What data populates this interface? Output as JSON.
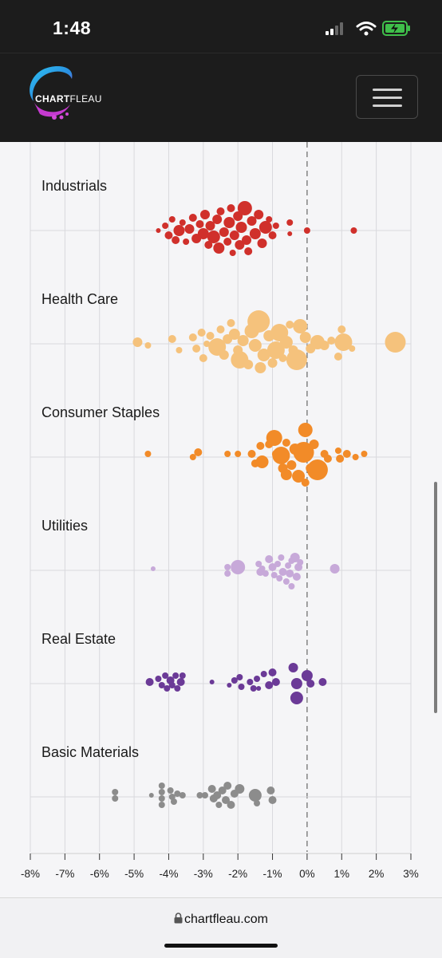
{
  "status_bar": {
    "time": "1:48"
  },
  "nav": {
    "logo_text_a": "CHART",
    "logo_text_b": "FLEAU",
    "menu_icon": "hamburger-menu-icon"
  },
  "url_bar": {
    "url": "chartfleau.com",
    "lock_icon": "lock-icon"
  },
  "chart_data": {
    "type": "scatter",
    "subtype": "beeswarm",
    "title": "",
    "xlabel": "",
    "ylabel": "",
    "xlim": [
      -8,
      3
    ],
    "x_ticks": [
      "-8%",
      "-7%",
      "-6%",
      "-5%",
      "-4%",
      "-3%",
      "-2%",
      "-1%",
      "0%",
      "1%",
      "2%",
      "3%"
    ],
    "x_tick_values": [
      -8,
      -7,
      -6,
      -5,
      -4,
      -3,
      -2,
      -1,
      0,
      1,
      2,
      3
    ],
    "reference_line": {
      "x": 0,
      "style": "dashed"
    },
    "grid": "vertical",
    "series": [
      {
        "name": "Industrials",
        "color": "#d0302b",
        "points": [
          {
            "x": -4.3,
            "dy": 0,
            "r": 3
          },
          {
            "x": -4.1,
            "dy": -6,
            "r": 4
          },
          {
            "x": -4.0,
            "dy": 6,
            "r": 5
          },
          {
            "x": -3.9,
            "dy": -14,
            "r": 4
          },
          {
            "x": -3.8,
            "dy": 12,
            "r": 5
          },
          {
            "x": -3.7,
            "dy": 0,
            "r": 7
          },
          {
            "x": -3.6,
            "dy": -10,
            "r": 4
          },
          {
            "x": -3.5,
            "dy": 14,
            "r": 4
          },
          {
            "x": -3.4,
            "dy": -2,
            "r": 6
          },
          {
            "x": -3.3,
            "dy": -16,
            "r": 5
          },
          {
            "x": -3.2,
            "dy": 10,
            "r": 6
          },
          {
            "x": -3.1,
            "dy": -8,
            "r": 5
          },
          {
            "x": -3.0,
            "dy": 4,
            "r": 7
          },
          {
            "x": -2.95,
            "dy": -20,
            "r": 6
          },
          {
            "x": -2.85,
            "dy": 18,
            "r": 5
          },
          {
            "x": -2.8,
            "dy": -6,
            "r": 6
          },
          {
            "x": -2.7,
            "dy": 8,
            "r": 8
          },
          {
            "x": -2.6,
            "dy": -14,
            "r": 6
          },
          {
            "x": -2.55,
            "dy": 22,
            "r": 7
          },
          {
            "x": -2.5,
            "dy": -24,
            "r": 5
          },
          {
            "x": -2.4,
            "dy": 2,
            "r": 6
          },
          {
            "x": -2.3,
            "dy": 14,
            "r": 5
          },
          {
            "x": -2.25,
            "dy": -10,
            "r": 7
          },
          {
            "x": -2.2,
            "dy": -28,
            "r": 5
          },
          {
            "x": -2.15,
            "dy": 28,
            "r": 4
          },
          {
            "x": -2.1,
            "dy": 6,
            "r": 6
          },
          {
            "x": -2.0,
            "dy": -18,
            "r": 6
          },
          {
            "x": -1.95,
            "dy": 18,
            "r": 6
          },
          {
            "x": -1.9,
            "dy": -4,
            "r": 7
          },
          {
            "x": -1.8,
            "dy": -28,
            "r": 9
          },
          {
            "x": -1.75,
            "dy": 12,
            "r": 6
          },
          {
            "x": -1.7,
            "dy": 26,
            "r": 5
          },
          {
            "x": -1.6,
            "dy": -12,
            "r": 6
          },
          {
            "x": -1.5,
            "dy": 4,
            "r": 7
          },
          {
            "x": -1.4,
            "dy": -20,
            "r": 6
          },
          {
            "x": -1.3,
            "dy": 16,
            "r": 6
          },
          {
            "x": -1.2,
            "dy": -4,
            "r": 8
          },
          {
            "x": -1.1,
            "dy": -14,
            "r": 4
          },
          {
            "x": -1.0,
            "dy": 6,
            "r": 5
          },
          {
            "x": -0.9,
            "dy": -6,
            "r": 4
          },
          {
            "x": -0.5,
            "dy": -10,
            "r": 4
          },
          {
            "x": -0.5,
            "dy": 4,
            "r": 3
          },
          {
            "x": 0.0,
            "dy": 0,
            "r": 4
          },
          {
            "x": 1.35,
            "dy": 0,
            "r": 4
          }
        ]
      },
      {
        "name": "Health Care",
        "color": "#f5c27c",
        "points": [
          {
            "x": -4.9,
            "dy": -2,
            "r": 6
          },
          {
            "x": -4.6,
            "dy": 2,
            "r": 4
          },
          {
            "x": -3.9,
            "dy": -6,
            "r": 5
          },
          {
            "x": -3.7,
            "dy": 8,
            "r": 4
          },
          {
            "x": -3.3,
            "dy": -8,
            "r": 5
          },
          {
            "x": -3.2,
            "dy": 6,
            "r": 5
          },
          {
            "x": -3.05,
            "dy": -14,
            "r": 5
          },
          {
            "x": -3.0,
            "dy": 18,
            "r": 5
          },
          {
            "x": -2.9,
            "dy": 0,
            "r": 4
          },
          {
            "x": -2.8,
            "dy": -10,
            "r": 5
          },
          {
            "x": -2.6,
            "dy": 4,
            "r": 11
          },
          {
            "x": -2.5,
            "dy": -18,
            "r": 5
          },
          {
            "x": -2.4,
            "dy": 14,
            "r": 6
          },
          {
            "x": -2.3,
            "dy": -6,
            "r": 6
          },
          {
            "x": -2.2,
            "dy": -26,
            "r": 5
          },
          {
            "x": -2.1,
            "dy": -12,
            "r": 7
          },
          {
            "x": -2.0,
            "dy": 8,
            "r": 6
          },
          {
            "x": -1.95,
            "dy": 20,
            "r": 11
          },
          {
            "x": -1.85,
            "dy": -4,
            "r": 7
          },
          {
            "x": -1.7,
            "dy": 26,
            "r": 6
          },
          {
            "x": -1.6,
            "dy": -16,
            "r": 9
          },
          {
            "x": -1.5,
            "dy": 2,
            "r": 8
          },
          {
            "x": -1.4,
            "dy": -28,
            "r": 14
          },
          {
            "x": -1.35,
            "dy": 30,
            "r": 7
          },
          {
            "x": -1.25,
            "dy": 14,
            "r": 8
          },
          {
            "x": -1.1,
            "dy": -10,
            "r": 7
          },
          {
            "x": -1.0,
            "dy": 24,
            "r": 6
          },
          {
            "x": -0.9,
            "dy": 8,
            "r": 11
          },
          {
            "x": -0.8,
            "dy": -14,
            "r": 11
          },
          {
            "x": -0.7,
            "dy": 18,
            "r": 5
          },
          {
            "x": -0.6,
            "dy": -2,
            "r": 8
          },
          {
            "x": -0.5,
            "dy": -24,
            "r": 5
          },
          {
            "x": -0.4,
            "dy": 8,
            "r": 6
          },
          {
            "x": -0.3,
            "dy": 20,
            "r": 13
          },
          {
            "x": -0.2,
            "dy": -22,
            "r": 9
          },
          {
            "x": -0.05,
            "dy": -8,
            "r": 7
          },
          {
            "x": 0.1,
            "dy": 6,
            "r": 6
          },
          {
            "x": 0.3,
            "dy": -2,
            "r": 9
          },
          {
            "x": 0.5,
            "dy": 2,
            "r": 6
          },
          {
            "x": 0.7,
            "dy": -4,
            "r": 5
          },
          {
            "x": 0.9,
            "dy": 16,
            "r": 5
          },
          {
            "x": 1.0,
            "dy": -18,
            "r": 5
          },
          {
            "x": 1.05,
            "dy": -2,
            "r": 11
          },
          {
            "x": 1.3,
            "dy": 6,
            "r": 4
          },
          {
            "x": 2.55,
            "dy": -2,
            "r": 13
          }
        ]
      },
      {
        "name": "Consumer Staples",
        "color": "#f28b28",
        "points": [
          {
            "x": -4.6,
            "dy": -4,
            "r": 4
          },
          {
            "x": -3.3,
            "dy": 0,
            "r": 4
          },
          {
            "x": -3.15,
            "dy": -6,
            "r": 5
          },
          {
            "x": -2.3,
            "dy": -4,
            "r": 4
          },
          {
            "x": -2.0,
            "dy": -4,
            "r": 4
          },
          {
            "x": -1.6,
            "dy": -4,
            "r": 5
          },
          {
            "x": -1.5,
            "dy": 8,
            "r": 5
          },
          {
            "x": -1.35,
            "dy": -14,
            "r": 5
          },
          {
            "x": -1.3,
            "dy": 6,
            "r": 8
          },
          {
            "x": -1.1,
            "dy": -16,
            "r": 5
          },
          {
            "x": -0.95,
            "dy": -24,
            "r": 10
          },
          {
            "x": -0.9,
            "dy": -4,
            "r": 5
          },
          {
            "x": -0.75,
            "dy": -2,
            "r": 11
          },
          {
            "x": -0.7,
            "dy": 14,
            "r": 6
          },
          {
            "x": -0.6,
            "dy": -18,
            "r": 5
          },
          {
            "x": -0.6,
            "dy": 22,
            "r": 7
          },
          {
            "x": -0.45,
            "dy": 10,
            "r": 6
          },
          {
            "x": -0.35,
            "dy": -10,
            "r": 7
          },
          {
            "x": -0.25,
            "dy": 24,
            "r": 8
          },
          {
            "x": -0.1,
            "dy": -6,
            "r": 13
          },
          {
            "x": -0.05,
            "dy": -34,
            "r": 9
          },
          {
            "x": -0.05,
            "dy": 32,
            "r": 5
          },
          {
            "x": 0.1,
            "dy": 14,
            "r": 6
          },
          {
            "x": 0.2,
            "dy": -16,
            "r": 6
          },
          {
            "x": 0.3,
            "dy": 16,
            "r": 13
          },
          {
            "x": 0.5,
            "dy": -4,
            "r": 5
          },
          {
            "x": 0.6,
            "dy": 2,
            "r": 5
          },
          {
            "x": 0.9,
            "dy": -8,
            "r": 4
          },
          {
            "x": 0.95,
            "dy": 2,
            "r": 5
          },
          {
            "x": 1.15,
            "dy": -4,
            "r": 5
          },
          {
            "x": 1.4,
            "dy": 0,
            "r": 4
          },
          {
            "x": 1.65,
            "dy": -4,
            "r": 4
          }
        ]
      },
      {
        "name": "Utilities",
        "color": "#c7a9d9",
        "points": [
          {
            "x": -4.45,
            "dy": -2,
            "r": 3
          },
          {
            "x": -2.3,
            "dy": -4,
            "r": 4
          },
          {
            "x": -2.3,
            "dy": 4,
            "r": 4
          },
          {
            "x": -2.0,
            "dy": -4,
            "r": 9
          },
          {
            "x": -1.4,
            "dy": -8,
            "r": 4
          },
          {
            "x": -1.35,
            "dy": 2,
            "r": 5
          },
          {
            "x": -1.3,
            "dy": -2,
            "r": 4
          },
          {
            "x": -1.2,
            "dy": 4,
            "r": 4
          },
          {
            "x": -1.1,
            "dy": -14,
            "r": 5
          },
          {
            "x": -1.0,
            "dy": -4,
            "r": 5
          },
          {
            "x": -0.95,
            "dy": 6,
            "r": 4
          },
          {
            "x": -0.85,
            "dy": -8,
            "r": 4
          },
          {
            "x": -0.8,
            "dy": 10,
            "r": 4
          },
          {
            "x": -0.75,
            "dy": -16,
            "r": 4
          },
          {
            "x": -0.7,
            "dy": 2,
            "r": 5
          },
          {
            "x": -0.6,
            "dy": 14,
            "r": 4
          },
          {
            "x": -0.55,
            "dy": -6,
            "r": 4
          },
          {
            "x": -0.5,
            "dy": 4,
            "r": 5
          },
          {
            "x": -0.45,
            "dy": -12,
            "r": 4
          },
          {
            "x": -0.45,
            "dy": 20,
            "r": 4
          },
          {
            "x": -0.35,
            "dy": -16,
            "r": 6
          },
          {
            "x": -0.3,
            "dy": 8,
            "r": 5
          },
          {
            "x": -0.25,
            "dy": -4,
            "r": 5
          },
          {
            "x": -0.2,
            "dy": -10,
            "r": 4
          },
          {
            "x": 0.8,
            "dy": -2,
            "r": 6
          }
        ]
      },
      {
        "name": "Real Estate",
        "color": "#6b3a97",
        "points": [
          {
            "x": -4.55,
            "dy": -2,
            "r": 5
          },
          {
            "x": -4.3,
            "dy": -6,
            "r": 4
          },
          {
            "x": -4.2,
            "dy": 2,
            "r": 4
          },
          {
            "x": -4.1,
            "dy": -10,
            "r": 4
          },
          {
            "x": -4.05,
            "dy": 6,
            "r": 4
          },
          {
            "x": -3.95,
            "dy": -4,
            "r": 5
          },
          {
            "x": -3.9,
            "dy": 2,
            "r": 4
          },
          {
            "x": -3.8,
            "dy": -10,
            "r": 4
          },
          {
            "x": -3.75,
            "dy": 6,
            "r": 4
          },
          {
            "x": -3.65,
            "dy": -2,
            "r": 5
          },
          {
            "x": -3.6,
            "dy": -10,
            "r": 4
          },
          {
            "x": -2.75,
            "dy": -2,
            "r": 3
          },
          {
            "x": -2.25,
            "dy": 2,
            "r": 3
          },
          {
            "x": -2.1,
            "dy": -4,
            "r": 4
          },
          {
            "x": -1.95,
            "dy": -8,
            "r": 4
          },
          {
            "x": -1.9,
            "dy": 4,
            "r": 4
          },
          {
            "x": -1.65,
            "dy": -2,
            "r": 4
          },
          {
            "x": -1.55,
            "dy": 6,
            "r": 4
          },
          {
            "x": -1.45,
            "dy": -6,
            "r": 4
          },
          {
            "x": -1.4,
            "dy": 6,
            "r": 3
          },
          {
            "x": -1.25,
            "dy": -12,
            "r": 4
          },
          {
            "x": -1.1,
            "dy": 2,
            "r": 5
          },
          {
            "x": -1.0,
            "dy": -14,
            "r": 5
          },
          {
            "x": -0.9,
            "dy": -2,
            "r": 5
          },
          {
            "x": -0.4,
            "dy": -20,
            "r": 6
          },
          {
            "x": -0.3,
            "dy": 0,
            "r": 7
          },
          {
            "x": -0.3,
            "dy": 18,
            "r": 8
          },
          {
            "x": 0.0,
            "dy": -10,
            "r": 7
          },
          {
            "x": 0.1,
            "dy": 0,
            "r": 5
          },
          {
            "x": 0.45,
            "dy": -2,
            "r": 5
          }
        ]
      },
      {
        "name": "Basic Materials",
        "color": "#8c8c8c",
        "points": [
          {
            "x": -5.55,
            "dy": -6,
            "r": 4
          },
          {
            "x": -5.55,
            "dy": 2,
            "r": 4
          },
          {
            "x": -4.5,
            "dy": -2,
            "r": 3
          },
          {
            "x": -4.2,
            "dy": -14,
            "r": 4
          },
          {
            "x": -4.2,
            "dy": -6,
            "r": 4
          },
          {
            "x": -4.2,
            "dy": 2,
            "r": 4
          },
          {
            "x": -4.2,
            "dy": 10,
            "r": 4
          },
          {
            "x": -3.95,
            "dy": -8,
            "r": 4
          },
          {
            "x": -3.9,
            "dy": 0,
            "r": 4
          },
          {
            "x": -3.85,
            "dy": 6,
            "r": 4
          },
          {
            "x": -3.75,
            "dy": -4,
            "r": 4
          },
          {
            "x": -3.6,
            "dy": -2,
            "r": 4
          },
          {
            "x": -3.1,
            "dy": -2,
            "r": 4
          },
          {
            "x": -2.95,
            "dy": -2,
            "r": 4
          },
          {
            "x": -2.75,
            "dy": -10,
            "r": 5
          },
          {
            "x": -2.7,
            "dy": 2,
            "r": 5
          },
          {
            "x": -2.6,
            "dy": -2,
            "r": 5
          },
          {
            "x": -2.55,
            "dy": 10,
            "r": 4
          },
          {
            "x": -2.45,
            "dy": -8,
            "r": 5
          },
          {
            "x": -2.35,
            "dy": 4,
            "r": 5
          },
          {
            "x": -2.3,
            "dy": -14,
            "r": 5
          },
          {
            "x": -2.2,
            "dy": 10,
            "r": 5
          },
          {
            "x": -2.1,
            "dy": -4,
            "r": 5
          },
          {
            "x": -1.95,
            "dy": -10,
            "r": 6
          },
          {
            "x": -1.5,
            "dy": -2,
            "r": 8
          },
          {
            "x": -1.45,
            "dy": 8,
            "r": 4
          },
          {
            "x": -1.05,
            "dy": -8,
            "r": 5
          },
          {
            "x": -1.0,
            "dy": 4,
            "r": 5
          }
        ]
      }
    ]
  }
}
